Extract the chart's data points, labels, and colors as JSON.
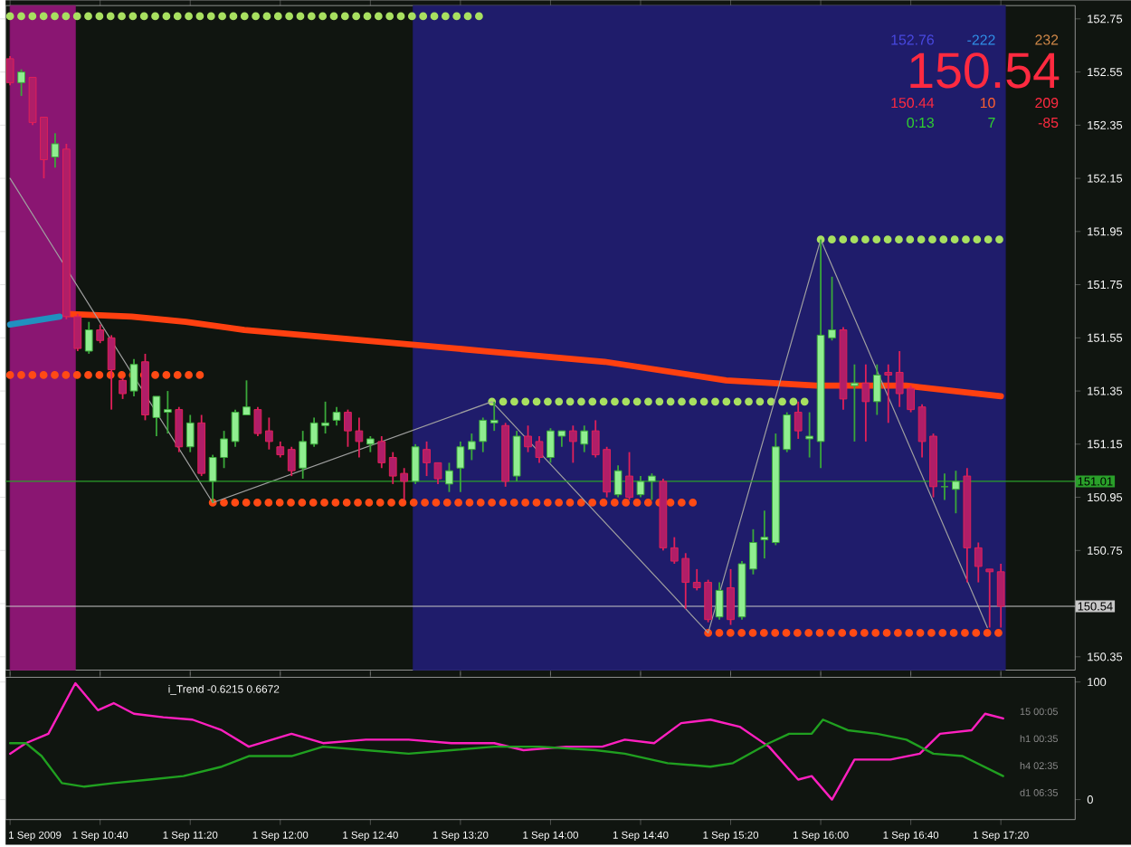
{
  "chart_data": [
    {
      "type": "candlestick",
      "x": [
        "2009-09-01T10:00",
        "2009-09-01T10:05",
        "2009-09-01T10:10",
        "2009-09-01T10:15",
        "2009-09-01T10:20",
        "2009-09-01T10:25",
        "2009-09-01T10:30",
        "2009-09-01T10:35",
        "2009-09-01T10:40",
        "2009-09-01T10:45",
        "2009-09-01T10:50",
        "2009-09-01T10:55",
        "2009-09-01T11:00",
        "2009-09-01T11:05",
        "2009-09-01T11:10",
        "2009-09-01T11:15",
        "2009-09-01T11:20",
        "2009-09-01T11:25",
        "2009-09-01T11:30",
        "2009-09-01T11:35",
        "2009-09-01T11:40",
        "2009-09-01T11:45",
        "2009-09-01T11:50",
        "2009-09-01T11:55",
        "2009-09-01T12:00",
        "2009-09-01T12:05",
        "2009-09-01T12:10",
        "2009-09-01T12:15",
        "2009-09-01T12:20",
        "2009-09-01T12:25",
        "2009-09-01T12:30",
        "2009-09-01T12:35",
        "2009-09-01T12:40",
        "2009-09-01T12:45",
        "2009-09-01T12:50",
        "2009-09-01T12:55",
        "2009-09-01T13:00",
        "2009-09-01T13:05",
        "2009-09-01T13:10",
        "2009-09-01T13:15",
        "2009-09-01T13:20",
        "2009-09-01T13:25",
        "2009-09-01T13:30",
        "2009-09-01T13:35",
        "2009-09-01T13:40",
        "2009-09-01T13:45",
        "2009-09-01T13:50",
        "2009-09-01T13:55",
        "2009-09-01T14:00",
        "2009-09-01T14:05",
        "2009-09-01T14:10",
        "2009-09-01T14:15",
        "2009-09-01T14:20",
        "2009-09-01T14:25",
        "2009-09-01T14:30",
        "2009-09-01T14:35",
        "2009-09-01T14:40",
        "2009-09-01T14:45",
        "2009-09-01T14:50",
        "2009-09-01T14:55",
        "2009-09-01T15:00",
        "2009-09-01T15:05",
        "2009-09-01T15:10",
        "2009-09-01T15:15",
        "2009-09-01T15:20",
        "2009-09-01T15:25",
        "2009-09-01T15:30",
        "2009-09-01T15:35",
        "2009-09-01T15:40",
        "2009-09-01T15:45",
        "2009-09-01T15:50",
        "2009-09-01T15:55",
        "2009-09-01T16:00",
        "2009-09-01T16:05",
        "2009-09-01T16:10",
        "2009-09-01T16:15",
        "2009-09-01T16:20",
        "2009-09-01T16:25",
        "2009-09-01T16:30",
        "2009-09-01T16:35",
        "2009-09-01T16:40",
        "2009-09-01T16:45",
        "2009-09-01T16:50",
        "2009-09-01T16:55",
        "2009-09-01T17:00",
        "2009-09-01T17:05",
        "2009-09-01T17:10",
        "2009-09-01T17:15",
        "2009-09-01T17:20"
      ],
      "ohlc": [
        [
          152.6,
          152.61,
          152.5,
          152.51
        ],
        [
          152.51,
          152.56,
          152.46,
          152.55
        ],
        [
          152.53,
          152.53,
          152.35,
          152.36
        ],
        [
          152.38,
          152.38,
          152.15,
          152.22
        ],
        [
          152.23,
          152.32,
          152.19,
          152.28
        ],
        [
          152.26,
          152.28,
          151.62,
          151.63
        ],
        [
          151.63,
          151.64,
          151.5,
          151.51
        ],
        [
          151.5,
          151.61,
          151.49,
          151.58
        ],
        [
          151.58,
          151.6,
          151.53,
          151.54
        ],
        [
          151.55,
          151.56,
          151.28,
          151.43
        ],
        [
          151.39,
          151.4,
          151.32,
          151.34
        ],
        [
          151.35,
          151.47,
          151.33,
          151.45
        ],
        [
          151.46,
          151.49,
          151.24,
          151.26
        ],
        [
          151.25,
          151.33,
          151.18,
          151.33
        ],
        [
          151.27,
          151.35,
          151.19,
          151.28
        ],
        [
          151.28,
          151.29,
          151.12,
          151.14
        ],
        [
          151.14,
          151.26,
          151.12,
          151.23
        ],
        [
          151.23,
          151.26,
          151.03,
          151.04
        ],
        [
          151.01,
          151.11,
          150.93,
          151.1
        ],
        [
          151.1,
          151.2,
          151.06,
          151.17
        ],
        [
          151.16,
          151.28,
          151.14,
          151.27
        ],
        [
          151.26,
          151.39,
          151.26,
          151.29
        ],
        [
          151.28,
          151.29,
          151.18,
          151.19
        ],
        [
          151.2,
          151.25,
          151.13,
          151.16
        ],
        [
          151.14,
          151.16,
          151.1,
          151.11
        ],
        [
          151.13,
          151.14,
          151.03,
          151.05
        ],
        [
          151.06,
          151.2,
          151.02,
          151.16
        ],
        [
          151.15,
          151.25,
          151.14,
          151.23
        ],
        [
          151.22,
          151.31,
          151.19,
          151.23
        ],
        [
          151.24,
          151.29,
          151.22,
          151.27
        ],
        [
          151.27,
          151.28,
          151.14,
          151.2
        ],
        [
          151.2,
          151.25,
          151.1,
          151.16
        ],
        [
          151.15,
          151.18,
          151.12,
          151.17
        ],
        [
          151.16,
          151.18,
          151.06,
          151.08
        ],
        [
          151.1,
          151.12,
          151.0,
          151.03
        ],
        [
          151.04,
          151.06,
          150.94,
          151.01
        ],
        [
          151.01,
          151.15,
          151.0,
          151.14
        ],
        [
          151.13,
          151.16,
          151.03,
          151.08
        ],
        [
          151.08,
          151.08,
          151.0,
          151.02
        ],
        [
          151.0,
          151.08,
          150.97,
          151.05
        ],
        [
          151.06,
          151.16,
          150.97,
          151.14
        ],
        [
          151.13,
          151.19,
          151.09,
          151.16
        ],
        [
          151.16,
          151.25,
          151.12,
          151.24
        ],
        [
          151.23,
          151.31,
          151.2,
          151.24
        ],
        [
          151.22,
          151.23,
          150.99,
          151.01
        ],
        [
          151.03,
          151.2,
          151.01,
          151.18
        ],
        [
          151.18,
          151.22,
          151.12,
          151.14
        ],
        [
          151.16,
          151.18,
          151.08,
          151.1
        ],
        [
          151.1,
          151.21,
          151.08,
          151.2
        ],
        [
          151.18,
          151.2,
          151.14,
          151.2
        ],
        [
          151.2,
          151.22,
          151.08,
          151.16
        ],
        [
          151.15,
          151.22,
          151.12,
          151.2
        ],
        [
          151.2,
          151.24,
          151.1,
          151.11
        ],
        [
          151.13,
          151.14,
          150.95,
          150.97
        ],
        [
          150.96,
          151.07,
          150.95,
          151.05
        ],
        [
          151.03,
          151.12,
          150.94,
          150.95
        ],
        [
          150.96,
          151.03,
          150.95,
          151.01
        ],
        [
          151.01,
          151.04,
          150.94,
          151.03
        ],
        [
          151.01,
          151.02,
          150.75,
          150.76
        ],
        [
          150.76,
          150.8,
          150.7,
          150.71
        ],
        [
          150.72,
          150.74,
          150.53,
          150.63
        ],
        [
          150.63,
          150.68,
          150.6,
          150.61
        ],
        [
          150.63,
          150.64,
          150.48,
          150.49
        ],
        [
          150.5,
          150.63,
          150.49,
          150.6
        ],
        [
          150.61,
          150.68,
          150.47,
          150.49
        ],
        [
          150.5,
          150.71,
          150.49,
          150.7
        ],
        [
          150.68,
          150.83,
          150.66,
          150.78
        ],
        [
          150.79,
          150.9,
          150.72,
          150.8
        ],
        [
          150.78,
          151.19,
          150.77,
          151.14
        ],
        [
          151.13,
          151.27,
          151.12,
          151.26
        ],
        [
          151.27,
          151.31,
          151.17,
          151.2
        ],
        [
          151.17,
          151.27,
          151.1,
          151.18
        ],
        [
          151.16,
          151.92,
          151.06,
          151.56
        ],
        [
          151.55,
          151.78,
          151.54,
          151.58
        ],
        [
          151.58,
          151.59,
          151.28,
          151.32
        ],
        [
          151.37,
          151.45,
          151.16,
          151.38
        ],
        [
          151.38,
          151.45,
          151.16,
          151.31
        ],
        [
          151.31,
          151.45,
          151.26,
          151.41
        ],
        [
          151.42,
          151.45,
          151.23,
          151.41
        ],
        [
          151.42,
          151.5,
          151.29,
          151.34
        ],
        [
          151.36,
          151.37,
          151.27,
          151.28
        ],
        [
          151.29,
          151.3,
          151.1,
          151.16
        ],
        [
          151.18,
          151.19,
          150.95,
          150.99
        ],
        [
          150.99,
          151.04,
          150.94,
          150.99
        ],
        [
          150.98,
          151.05,
          150.89,
          151.01
        ],
        [
          151.03,
          151.06,
          150.63,
          150.76
        ],
        [
          150.76,
          150.78,
          150.63,
          150.69
        ],
        [
          150.68,
          150.68,
          150.46,
          150.67
        ],
        [
          150.67,
          150.7,
          150.46,
          150.54
        ]
      ],
      "xlim": [
        "2009-09-01T09:58",
        "2009-09-01T17:53"
      ],
      "ylim": [
        150.3,
        152.8
      ],
      "yticks": [
        150.35,
        {
          "value": 150.55,
          "label": null
        },
        150.75,
        150.95,
        151.15,
        151.35,
        151.55,
        151.75,
        151.95,
        152.15,
        152.35,
        152.55,
        152.75
      ],
      "xticks": [
        {
          "value": "2009-09-01T10:00",
          "label": null
        },
        {
          "value": "2009-09-01T10:40",
          "label": null
        },
        {
          "value": "2009-09-01T11:20",
          "label": null
        },
        {
          "value": "2009-09-01T12:00",
          "label": null
        },
        {
          "value": "2009-09-01T12:40",
          "label": null
        },
        {
          "value": "2009-09-01T13:20",
          "label": null
        },
        {
          "value": "2009-09-01T14:00",
          "label": null
        },
        {
          "value": "2009-09-01T14:40",
          "label": null
        },
        {
          "value": "2009-09-01T15:20",
          "label": null
        },
        {
          "value": "2009-09-01T16:00",
          "label": null
        },
        {
          "value": "2009-09-01T16:40",
          "label": null
        },
        {
          "value": "2009-09-01T17:20",
          "label": null
        }
      ],
      "tick_labels": "y",
      "series": [
        {
          "type": "line",
          "color": "#ff4010",
          "line_style": "solid",
          "x": [
            "2009-09-01T10:25",
            "2009-09-01T10:54",
            "2009-09-01T11:18",
            "2009-09-01T11:44",
            "2009-09-01T12:38",
            "2009-09-01T13:31",
            "2009-09-01T14:24",
            "2009-09-01T15:18",
            "2009-09-01T15:58",
            "2009-09-01T16:38",
            "2009-09-01T17:20"
          ],
          "values": [
            151.64,
            151.63,
            151.61,
            151.58,
            151.54,
            151.5,
            151.46,
            151.39,
            151.37,
            151.37,
            151.33
          ]
        },
        {
          "type": "line",
          "color": "#2090c0",
          "line_style": "solid",
          "x": [
            "2009-09-01T10:00",
            "2009-09-01T10:22"
          ],
          "values": [
            151.6,
            151.63
          ]
        },
        {
          "type": "line",
          "color": "#ff4a14",
          "line_style": "dotted",
          "x": [
            "2009-09-01T10:00",
            "2009-09-01T11:26"
          ],
          "values": [
            151.41,
            151.41
          ]
        },
        {
          "type": "line",
          "color": "#ff4a14",
          "line_style": "dotted",
          "x": [
            "2009-09-01T11:30",
            "2009-09-01T15:04"
          ],
          "values": [
            150.93,
            150.93
          ]
        },
        {
          "type": "line",
          "color": "#ff4a14",
          "line_style": "dotted",
          "x": [
            "2009-09-01T15:10",
            "2009-09-01T17:20"
          ],
          "values": [
            150.44,
            150.44
          ]
        },
        {
          "type": "line",
          "color": "#a8e060",
          "line_style": "dotted",
          "x": [
            "2009-09-01T10:00",
            "2009-09-01T13:30"
          ],
          "values": [
            152.76,
            152.76
          ]
        },
        {
          "type": "line",
          "color": "#a8e060",
          "line_style": "dotted",
          "x": [
            "2009-09-01T13:34",
            "2009-09-01T15:54"
          ],
          "values": [
            151.31,
            151.31
          ]
        },
        {
          "type": "line",
          "color": "#a8e060",
          "line_style": "dotted",
          "x": [
            "2009-09-01T16:00",
            "2009-09-01T17:20"
          ],
          "values": [
            151.92,
            151.92
          ]
        },
        {
          "type": "line",
          "color": "#a0a0a0",
          "line_style": "solid",
          "x": [
            "2009-09-01T10:00",
            "2009-09-01T11:30",
            "2009-09-01T13:34",
            "2009-09-01T15:10",
            "2009-09-01T16:00",
            "2009-09-01T17:14"
          ],
          "values": [
            152.15,
            150.93,
            151.31,
            150.44,
            151.92,
            150.46
          ]
        }
      ],
      "bands": [
        {
          "axis": "x",
          "from": "2009-09-01T10:00",
          "to": "2009-09-01T10:29",
          "color": "#8a1672"
        },
        {
          "axis": "x",
          "from": "2009-09-01T12:59",
          "to": "2009-09-01T17:22",
          "color": "#1f1c6b"
        }
      ],
      "ref_lines": [
        {
          "axis": "y",
          "value": 151.01,
          "label": "151.01",
          "color": "#2aa02a"
        },
        {
          "axis": "y",
          "value": 150.54,
          "label": "150.54",
          "color": "#c8c8c8"
        }
      ],
      "annotations": [
        "152.76",
        "-222",
        "232",
        "150.54",
        "150.44",
        "10",
        "209",
        "0:13",
        "7",
        "-85"
      ]
    },
    {
      "type": "line",
      "xlim": [
        "2009-09-01T09:58",
        "2009-09-01T17:53"
      ],
      "ylim": [
        -17,
        104
      ],
      "yticks": [
        0,
        100
      ],
      "xticks": [
        {
          "value": "2009-09-01T10:00",
          "label": "1 Sep 2009"
        },
        {
          "value": "2009-09-01T10:40",
          "label": "1 Sep 10:40"
        },
        {
          "value": "2009-09-01T11:20",
          "label": "1 Sep 11:20"
        },
        {
          "value": "2009-09-01T12:00",
          "label": "1 Sep 12:00"
        },
        {
          "value": "2009-09-01T12:40",
          "label": "1 Sep 12:40"
        },
        {
          "value": "2009-09-01T13:20",
          "label": "1 Sep 13:20"
        },
        {
          "value": "2009-09-01T14:00",
          "label": "1 Sep 14:00"
        },
        {
          "value": "2009-09-01T14:40",
          "label": "1 Sep 14:40"
        },
        {
          "value": "2009-09-01T15:20",
          "label": "1 Sep 15:20"
        },
        {
          "value": "2009-09-01T16:00",
          "label": "1 Sep 16:00"
        },
        {
          "value": "2009-09-01T16:40",
          "label": "1 Sep 16:40"
        },
        {
          "value": "2009-09-01T17:20",
          "label": "1 Sep 17:20"
        }
      ],
      "series": [
        {
          "color": "#ff20c0",
          "x": [
            "2009-09-01T10:00",
            "2009-09-01T10:07",
            "2009-09-01T10:17",
            "2009-09-01T10:29",
            "2009-09-01T10:39",
            "2009-09-01T10:46",
            "2009-09-01T10:55",
            "2009-09-01T11:08",
            "2009-09-01T11:21",
            "2009-09-01T11:34",
            "2009-09-01T11:46",
            "2009-09-01T12:05",
            "2009-09-01T12:19",
            "2009-09-01T12:38",
            "2009-09-01T12:57",
            "2009-09-01T13:16",
            "2009-09-01T13:35",
            "2009-09-01T13:48",
            "2009-09-01T14:07",
            "2009-09-01T14:23",
            "2009-09-01T14:33",
            "2009-09-01T14:46",
            "2009-09-01T14:58",
            "2009-09-01T15:11",
            "2009-09-01T15:24",
            "2009-09-01T15:37",
            "2009-09-01T15:50",
            "2009-09-01T15:56",
            "2009-09-01T16:05",
            "2009-09-01T16:15",
            "2009-09-01T16:31",
            "2009-09-01T16:44",
            "2009-09-01T16:53",
            "2009-09-01T17:07",
            "2009-09-01T17:13",
            "2009-09-01T17:21"
          ],
          "values": [
            39,
            48,
            56,
            99,
            76,
            82,
            73,
            70,
            68,
            59,
            45,
            56,
            48,
            51,
            51,
            48,
            48,
            42,
            45,
            45,
            51,
            48,
            65,
            68,
            62,
            45,
            17,
            20,
            0,
            34,
            34,
            39,
            56,
            59,
            73,
            69
          ]
        },
        {
          "color": "#20a020",
          "x": [
            "2009-09-01T10:00",
            "2009-09-01T10:07",
            "2009-09-01T10:14",
            "2009-09-01T10:23",
            "2009-09-01T10:33",
            "2009-09-01T10:46",
            "2009-09-01T11:02",
            "2009-09-01T11:17",
            "2009-09-01T11:34",
            "2009-09-01T11:46",
            "2009-09-01T12:05",
            "2009-09-01T12:19",
            "2009-09-01T12:38",
            "2009-09-01T12:57",
            "2009-09-01T13:16",
            "2009-09-01T13:35",
            "2009-09-01T13:55",
            "2009-09-01T14:20",
            "2009-09-01T14:33",
            "2009-09-01T14:52",
            "2009-09-01T15:11",
            "2009-09-01T15:21",
            "2009-09-01T15:37",
            "2009-09-01T15:46",
            "2009-09-01T15:56",
            "2009-09-01T16:01",
            "2009-09-01T16:12",
            "2009-09-01T16:25",
            "2009-09-01T16:38",
            "2009-09-01T16:50",
            "2009-09-01T17:03",
            "2009-09-01T17:21"
          ],
          "values": [
            48,
            48,
            37,
            14,
            11,
            14,
            17,
            20,
            28,
            37,
            37,
            45,
            42,
            39,
            42,
            45,
            45,
            42,
            39,
            31,
            28,
            31,
            48,
            56,
            56,
            68,
            59,
            56,
            51,
            39,
            37,
            20
          ]
        }
      ],
      "annotations": [
        "i_Trend -0.6215 0.6672",
        "15 00:05",
        "h1 00:35",
        "h4 02:35",
        "d1 06:35"
      ]
    }
  ]
}
